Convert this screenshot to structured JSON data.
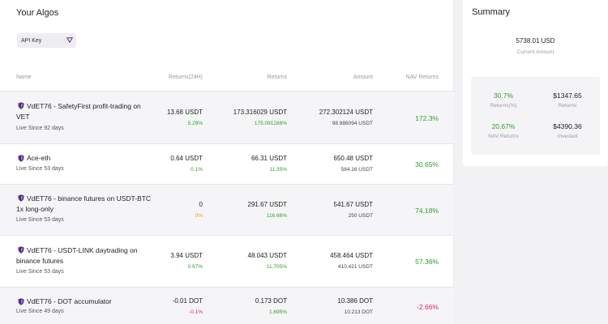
{
  "page_title": "Your Algos",
  "api_select": {
    "value": "API Key"
  },
  "table": {
    "headers": {
      "name": "Name",
      "returns24h": "Returns(24H)",
      "returns": "Returns",
      "amount": "Amount",
      "nav": "NAV Returns"
    },
    "rows": [
      {
        "name": "VdET76 - SafetyFirst profit-trading on VET",
        "since": "Live Since 92 days",
        "r24_main": "13.68 USDT",
        "r24_sub": "5.29%",
        "ret_main": "173.316029 USDT",
        "ret_sub": "175.091288%",
        "amt_main": "272.302124 USDT",
        "amt_sub": "98.986094 USDT",
        "nav": "172.3%"
      },
      {
        "name": "Ace-eth",
        "since": "Live Since 53 days",
        "r24_main": "0.64 USDT",
        "r24_sub": "0.1%",
        "ret_main": "66.31 USDT",
        "ret_sub": "11.35%",
        "amt_main": "650.48 USDT",
        "amt_sub": "584.16 USDT",
        "nav": "30.65%"
      },
      {
        "name": "VdET76 - binance futures on USDT-BTC 1x long-only",
        "since": "Live Since 53 days",
        "r24_main": "0",
        "r24_sub": "0%",
        "ret_main": "291.67 USDT",
        "ret_sub": "116.66%",
        "amt_main": "541.67 USDT",
        "amt_sub": "250 USDT",
        "nav": "74.18%"
      },
      {
        "name": "VdET76 - USDT-LINK daytrading on binance futures",
        "since": "Live Since 53 days",
        "r24_main": "3.94 USDT",
        "r24_sub": "0.97%",
        "ret_main": "48.043 USDT",
        "ret_sub": "11.705%",
        "amt_main": "458.464 USDT",
        "amt_sub": "410.421 USDT",
        "nav": "57.36%"
      },
      {
        "name": "VdET76 - DOT accumulator",
        "since": "Live Since 49 days",
        "r24_main": "-0.01 DOT",
        "r24_sub": "-0.1%",
        "ret_main": "0.173 DOT",
        "ret_sub": "1.695%",
        "amt_main": "10.386 DOT",
        "amt_sub": "10.213 DOT",
        "nav": "-2.66%"
      }
    ]
  },
  "summary": {
    "title": "Summary",
    "current_amount": "5738.01 USD",
    "current_amount_label": "Current Amount",
    "returns_pct": "30.7%",
    "returns_pct_label": "Returns(%)",
    "returns": "$1347.65",
    "returns_label": "Returns",
    "nav_returns": "20.67%",
    "nav_returns_label": "NAV Returns",
    "invested": "$4390.36",
    "invested_label": "Invested"
  },
  "colors": {
    "positive": "#2e9e2e",
    "negative": "#e0245e",
    "neutral": "#e89a1e",
    "brand": "#5b2a86"
  },
  "icons": {
    "algo": "shield-icon",
    "select_caret": "chevron-down-icon"
  }
}
